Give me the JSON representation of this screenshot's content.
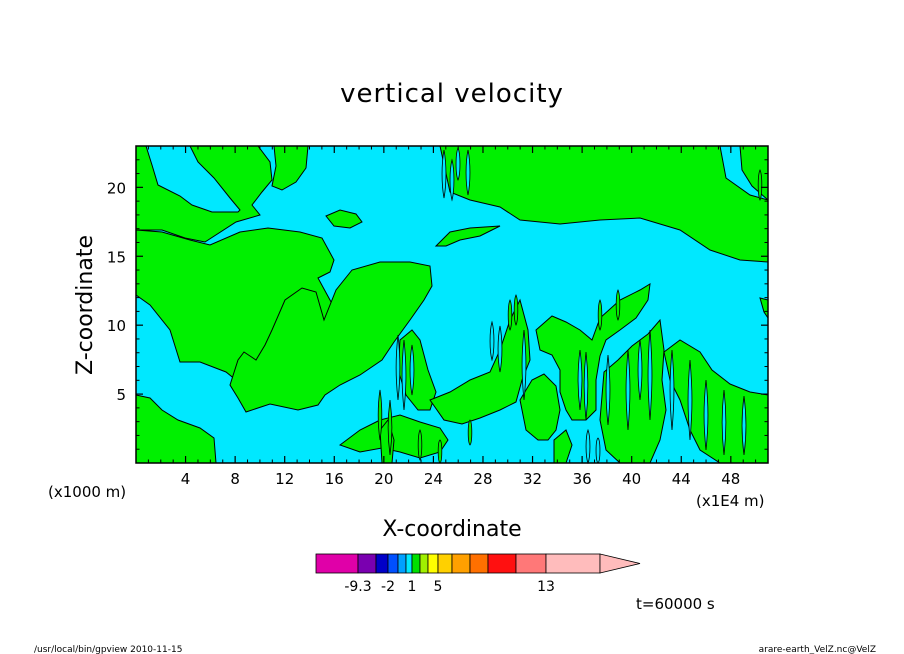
{
  "chart_data": {
    "type": "heatmap",
    "title": "vertical velocity",
    "xlabel": "X-coordinate",
    "ylabel": "Z-coordinate",
    "x_unit_label": "(x1000 m)",
    "x_range_unit_label": "(x1E4 m)",
    "xlim": [
      0,
      51
    ],
    "ylim": [
      0,
      23
    ],
    "x_ticks": [
      "4",
      "8",
      "12",
      "16",
      "20",
      "24",
      "28",
      "32",
      "36",
      "40",
      "44",
      "48"
    ],
    "y_ticks": [
      "5",
      "10",
      "15",
      "20"
    ],
    "time_label": "t=60000 s",
    "colorbar": {
      "labels": [
        {
          "text": "-9.3",
          "value": -9.3
        },
        {
          "text": "-2",
          "value": -2
        },
        {
          "text": "1",
          "value": 1
        },
        {
          "text": "5",
          "value": 5
        },
        {
          "text": "13",
          "value": 13
        }
      ],
      "colors": [
        "#e000a8",
        "#7a00b0",
        "#0000c8",
        "#0050ff",
        "#00a0ff",
        "#00e8ff",
        "#00e000",
        "#a0f000",
        "#ffff00",
        "#ffd000",
        "#ffa000",
        "#ff7000",
        "#ff1010",
        "#ff7878",
        "#ffbcbc"
      ]
    },
    "fill_colors": {
      "negative": "#00e8ff",
      "positive": "#00f000",
      "contour": "#000000"
    }
  },
  "footer": {
    "left": "/usr/local/bin/gpview   2010-11-15",
    "right": "arare-earth_VelZ.nc@VelZ"
  }
}
